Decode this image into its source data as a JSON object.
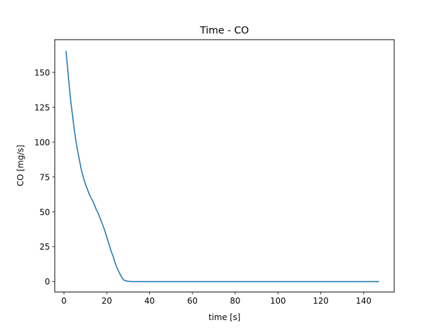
{
  "chart_data": {
    "type": "line",
    "title": "Time - CO",
    "xlabel": "time [s]",
    "ylabel": "CO [mg/s]",
    "xlim": [
      -4.3,
      154.3
    ],
    "ylim": [
      -7.5,
      173.5
    ],
    "xticks": [
      0,
      20,
      40,
      60,
      80,
      100,
      120,
      140
    ],
    "yticks": [
      0,
      25,
      50,
      75,
      100,
      125,
      150
    ],
    "grid": false,
    "series": [
      {
        "color": "#1f77b4",
        "x": [
          1,
          2,
          3,
          4,
          5,
          6,
          7,
          8,
          9,
          10,
          11,
          12,
          13,
          14,
          15,
          16,
          17,
          18,
          19,
          20,
          21,
          22,
          23,
          24,
          25,
          26,
          27,
          28,
          29,
          30,
          31,
          32,
          35,
          40,
          60,
          80,
          100,
          120,
          140,
          147
        ],
        "y": [
          165,
          148,
          132,
          119,
          107,
          97,
          89,
          81,
          75,
          70,
          66,
          62,
          59,
          56,
          52,
          49,
          45,
          41,
          37,
          32,
          27,
          22,
          18,
          13,
          9,
          6,
          3,
          1,
          0.5,
          0.2,
          0.1,
          0,
          0,
          0,
          0,
          0,
          0,
          0,
          0,
          0
        ]
      }
    ]
  }
}
